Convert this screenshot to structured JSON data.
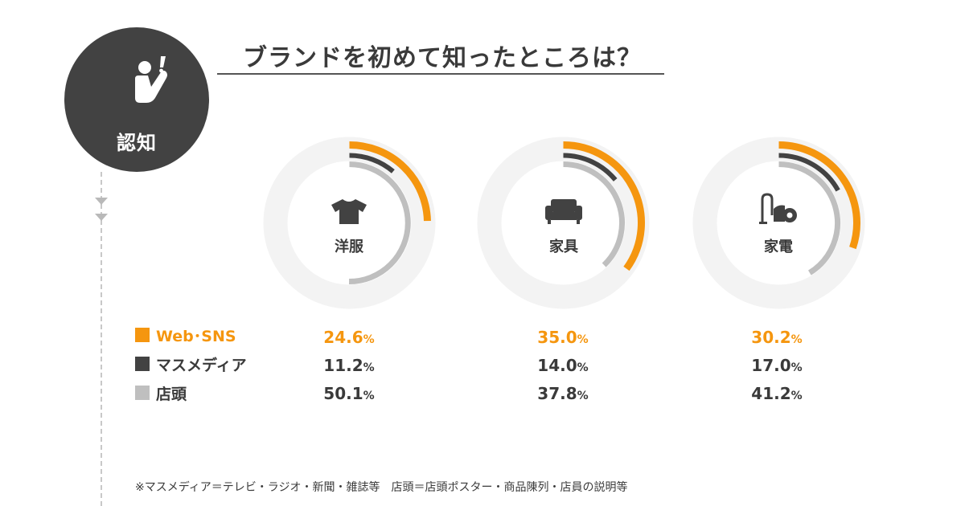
{
  "stage": {
    "label": "認知",
    "icon": "person-raising-hand-exclamation-icon"
  },
  "title": "ブランドを初めて知ったところは？",
  "colors": {
    "web_sns": "#f5960f",
    "mass_media": "#424242",
    "store": "#bfbfbf",
    "track": "#f3f3f3"
  },
  "legend": [
    {
      "key": "web_sns",
      "label": "Web･SNS",
      "color": "#f5960f"
    },
    {
      "key": "mass_media",
      "label": "マスメディア",
      "color": "#424242"
    },
    {
      "key": "store",
      "label": "店頭",
      "color": "#bfbfbf"
    }
  ],
  "chart_data": {
    "type": "radial-bar",
    "unit": "%",
    "categories": [
      "洋服",
      "家具",
      "家電"
    ],
    "category_icons": [
      "t-shirt-icon",
      "sofa-icon",
      "vacuum-cleaner-icon"
    ],
    "series": [
      {
        "name": "Web･SNS",
        "values": [
          24.6,
          35.0,
          30.2
        ],
        "labels": [
          "24.6",
          "35.0",
          "30.2"
        ]
      },
      {
        "name": "マスメディア",
        "values": [
          11.2,
          14.0,
          17.0
        ],
        "labels": [
          "11.2",
          "14.0",
          "17.0"
        ]
      },
      {
        "name": "店頭",
        "values": [
          50.1,
          37.8,
          41.2
        ],
        "labels": [
          "50.1",
          "37.8",
          "41.2"
        ]
      }
    ],
    "ylim": [
      0,
      100
    ]
  },
  "footnote": "※マスメディア＝テレビ・ラジオ・新聞・雑誌等　店頭＝店頭ポスター・商品陳列・店員の説明等"
}
